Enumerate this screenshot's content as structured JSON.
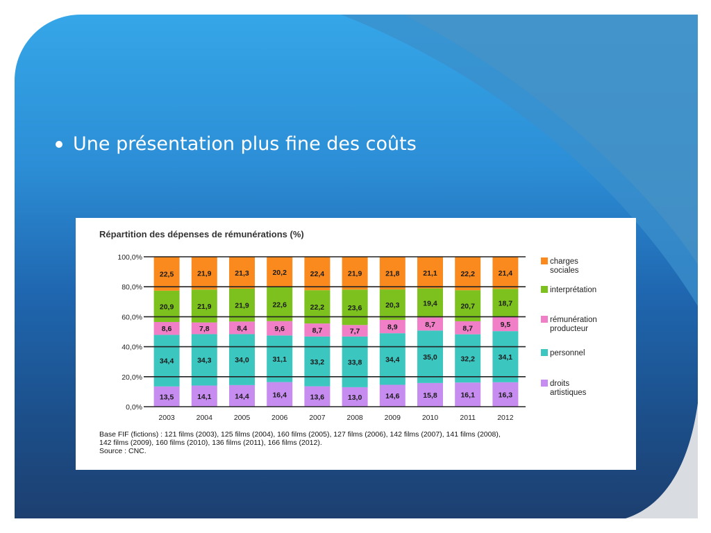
{
  "slide": {
    "bullet_text": "Une présentation plus fine des coûts"
  },
  "chart_data": {
    "type": "bar",
    "stacked": true,
    "title": "Répartition des dépenses de rémunérations (%)",
    "categories": [
      "2003",
      "2004",
      "2005",
      "2006",
      "2007",
      "2008",
      "2009",
      "2010",
      "2011",
      "2012"
    ],
    "ylim": [
      0,
      100
    ],
    "yticks": [
      "0,0%",
      "20,0%",
      "40,0%",
      "60,0%",
      "80,0%",
      "100,0%"
    ],
    "grid": true,
    "legend_position": "right",
    "series": [
      {
        "name": "droits\nartistiques",
        "color": "#c68cf0",
        "values": [
          13.5,
          14.1,
          14.4,
          16.4,
          13.6,
          13.0,
          14.6,
          15.8,
          16.1,
          16.3
        ],
        "labels": [
          "13,5",
          "14,1",
          "14,4",
          "16,4",
          "13,6",
          "13,0",
          "14,6",
          "15,8",
          "16,1",
          "16,3"
        ]
      },
      {
        "name": "personnel",
        "color": "#3cc6c0",
        "values": [
          34.4,
          34.3,
          34.0,
          31.1,
          33.2,
          33.8,
          34.4,
          35.0,
          32.2,
          34.1
        ],
        "labels": [
          "34,4",
          "34,3",
          "34,0",
          "31,1",
          "33,2",
          "33,8",
          "34,4",
          "35,0",
          "32,2",
          "34,1"
        ]
      },
      {
        "name": "rémunération\nproducteur",
        "color": "#f07fc8",
        "values": [
          8.6,
          7.8,
          8.4,
          9.6,
          8.7,
          7.7,
          8.9,
          8.7,
          8.7,
          9.5
        ],
        "labels": [
          "8,6",
          "7,8",
          "8,4",
          "9,6",
          "8,7",
          "7,7",
          "8,9",
          "8,7",
          "8,7",
          "9,5"
        ]
      },
      {
        "name": "interprétation",
        "color": "#7cc11e",
        "values": [
          20.9,
          21.9,
          21.9,
          22.6,
          22.2,
          23.6,
          20.3,
          19.4,
          20.7,
          18.7
        ],
        "labels": [
          "20,9",
          "21,9",
          "21,9",
          "22,6",
          "22,2",
          "23,6",
          "20,3",
          "19,4",
          "20,7",
          "18,7"
        ]
      },
      {
        "name": "charges\nsociales",
        "color": "#fb8a1e",
        "values": [
          22.5,
          21.9,
          21.3,
          20.2,
          22.4,
          21.9,
          21.8,
          21.1,
          22.2,
          21.4
        ],
        "labels": [
          "22,5",
          "21,9",
          "21,3",
          "20,2",
          "22,4",
          "21,9",
          "21,8",
          "21,1",
          "22,2",
          "21,4"
        ]
      }
    ],
    "notes": [
      "Base FIF (fictions) : 121 films (2003), 125 films (2004), 160 films (2005), 127 films (2006), 142 films (2007), 141 films (2008),",
      "142 films (2009), 160 films (2010), 136 films (2011), 166 films (2012).",
      "Source : CNC."
    ]
  }
}
